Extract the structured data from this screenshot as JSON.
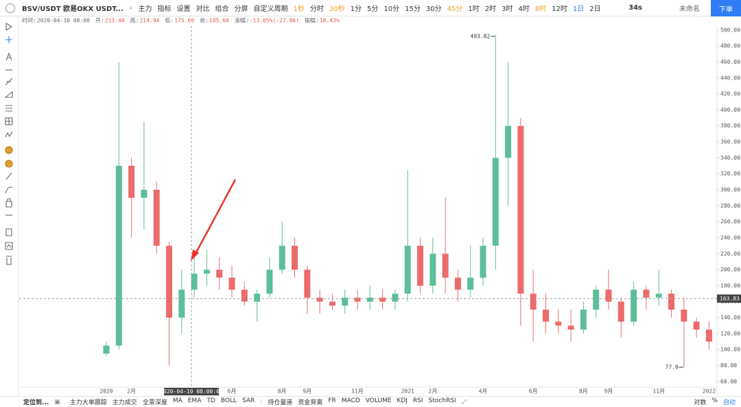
{
  "toolbar": {
    "symbol": "BSV/USDT 欧易OKX USDT...",
    "buttons": [
      "主力",
      "指标",
      "设置",
      "对比",
      "组合",
      "分屏"
    ],
    "custom_period": "自定义周期",
    "periods": [
      {
        "label": "1秒",
        "color": "#f0a030"
      },
      {
        "label": "分时",
        "color": "#333333"
      },
      {
        "label": "30秒",
        "color": "#f0a030"
      },
      {
        "label": "1分",
        "color": "#333333"
      },
      {
        "label": "5分",
        "color": "#333333"
      },
      {
        "label": "10分",
        "color": "#333333"
      },
      {
        "label": "15分",
        "color": "#333333"
      },
      {
        "label": "30分",
        "color": "#333333"
      },
      {
        "label": "45分",
        "color": "#f0a030"
      },
      {
        "label": "1时",
        "color": "#333333"
      },
      {
        "label": "2时",
        "color": "#333333"
      },
      {
        "label": "3时",
        "color": "#333333"
      },
      {
        "label": "4时",
        "color": "#333333"
      },
      {
        "label": "8时",
        "color": "#f0a030"
      },
      {
        "label": "12时",
        "color": "#333333"
      },
      {
        "label": "1日",
        "color": "#2f7df6"
      },
      {
        "label": "2日",
        "color": "#333333"
      }
    ],
    "countdown": "34s",
    "layout_name": "未命名",
    "order": "下单"
  },
  "chart_data": {
    "type": "candlestick",
    "info": [
      {
        "label": "时间:",
        "value": "2020-04-10 08:00"
      },
      {
        "label": "开:",
        "value": "213.40"
      },
      {
        "label": "高:",
        "value": "214.94"
      },
      {
        "label": "低:",
        "value": "175.60"
      },
      {
        "label": "收:",
        "value": "185.60"
      },
      {
        "label": "涨幅:",
        "value": "-13.05%(-27.86)"
      },
      {
        "label": "振幅:",
        "value": "18.43%"
      }
    ],
    "categories": [
      "2020",
      null,
      "2月",
      null,
      null,
      null,
      null,
      null,
      null,
      null,
      "6月",
      null,
      null,
      null,
      "8月",
      null,
      "9月",
      null,
      null,
      null,
      "11月",
      null,
      null,
      null,
      "2021",
      null,
      "2月",
      null,
      null,
      null,
      "4月",
      null,
      null,
      null,
      "6月",
      null,
      null,
      null,
      "8月",
      null,
      "9月",
      null,
      null,
      null,
      "11月",
      null,
      null,
      null,
      "2022"
    ],
    "open": [
      95,
      105,
      330,
      290,
      300,
      230,
      140,
      175,
      195,
      200,
      190,
      175,
      160,
      170,
      200,
      230,
      200,
      165,
      160,
      155,
      165,
      160,
      165,
      160,
      170,
      230,
      180,
      220,
      190,
      175,
      190,
      230,
      340,
      380,
      170,
      150,
      135,
      130,
      125,
      150,
      175,
      160,
      135,
      175,
      165,
      170,
      150,
      135,
      125
    ],
    "high": [
      110,
      460,
      340,
      385,
      310,
      235,
      200,
      215,
      225,
      215,
      205,
      185,
      175,
      215,
      260,
      240,
      205,
      175,
      170,
      175,
      175,
      180,
      175,
      175,
      325,
      240,
      240,
      290,
      200,
      230,
      240,
      493.82,
      460,
      390,
      200,
      170,
      150,
      150,
      160,
      180,
      200,
      165,
      185,
      180,
      200,
      175,
      165,
      140,
      135
    ],
    "low": [
      92,
      100,
      240,
      250,
      220,
      80,
      120,
      165,
      180,
      175,
      165,
      155,
      135,
      165,
      195,
      190,
      145,
      145,
      150,
      145,
      150,
      150,
      150,
      150,
      160,
      170,
      170,
      170,
      160,
      165,
      180,
      200,
      280,
      130,
      110,
      120,
      120,
      110,
      120,
      140,
      150,
      115,
      130,
      150,
      155,
      140,
      77.9,
      115,
      100
    ],
    "close": [
      105,
      330,
      290,
      300,
      230,
      140,
      175,
      195,
      200,
      190,
      175,
      160,
      170,
      200,
      230,
      200,
      165,
      160,
      155,
      165,
      160,
      165,
      160,
      170,
      230,
      180,
      220,
      190,
      175,
      190,
      230,
      340,
      380,
      170,
      150,
      135,
      130,
      125,
      150,
      175,
      160,
      135,
      175,
      165,
      170,
      150,
      135,
      125,
      110
    ],
    "up_color": "#5cbf9a",
    "down_color": "#eb6b6b",
    "ylim": [
      53,
      505
    ],
    "yticks": [
      {
        "value": 60,
        "label": "60.00"
      },
      {
        "value": 80,
        "label": "80.00"
      },
      {
        "value": 100,
        "label": "100.00"
      },
      {
        "value": 120,
        "label": "120.00"
      },
      {
        "value": 140,
        "label": "140.00"
      },
      {
        "value": 160,
        "label": "160.00"
      },
      {
        "value": 180,
        "label": "180.00"
      },
      {
        "value": 200,
        "label": "200.00"
      },
      {
        "value": 220,
        "label": "220.00"
      },
      {
        "value": 240,
        "label": "240.00"
      },
      {
        "value": 260,
        "label": "260.00"
      },
      {
        "value": 280,
        "label": "280.00"
      },
      {
        "value": 300,
        "label": "300.00"
      },
      {
        "value": 320,
        "label": "320.00"
      },
      {
        "value": 340,
        "label": "340.00"
      },
      {
        "value": 360,
        "label": "360.00"
      },
      {
        "value": 380,
        "label": "380.00"
      },
      {
        "value": 400,
        "label": "400.00"
      },
      {
        "value": 420,
        "label": "420.00"
      },
      {
        "value": 440,
        "label": "440.00"
      },
      {
        "value": 460,
        "label": "460.00"
      },
      {
        "value": 480,
        "label": "480.00"
      },
      {
        "value": 500,
        "label": "500.00"
      }
    ],
    "crosshair": {
      "time": "2020-04-10 08:00:00",
      "price": 163.83
    }
  },
  "bottom_bar": {
    "locate": "定位到...",
    "indicators": [
      "主力大单跟踪",
      "主力成交",
      "全景深度",
      "MA",
      "EMA",
      "TD",
      "BOLL",
      "SAR"
    ],
    "indicators2": [
      "持仓量道",
      "资金背离",
      "FR",
      "MACD",
      "VOLUME",
      "KDJ",
      "RSI",
      "StochRSI"
    ],
    "scale": [
      "对数",
      "%",
      "自动"
    ]
  }
}
